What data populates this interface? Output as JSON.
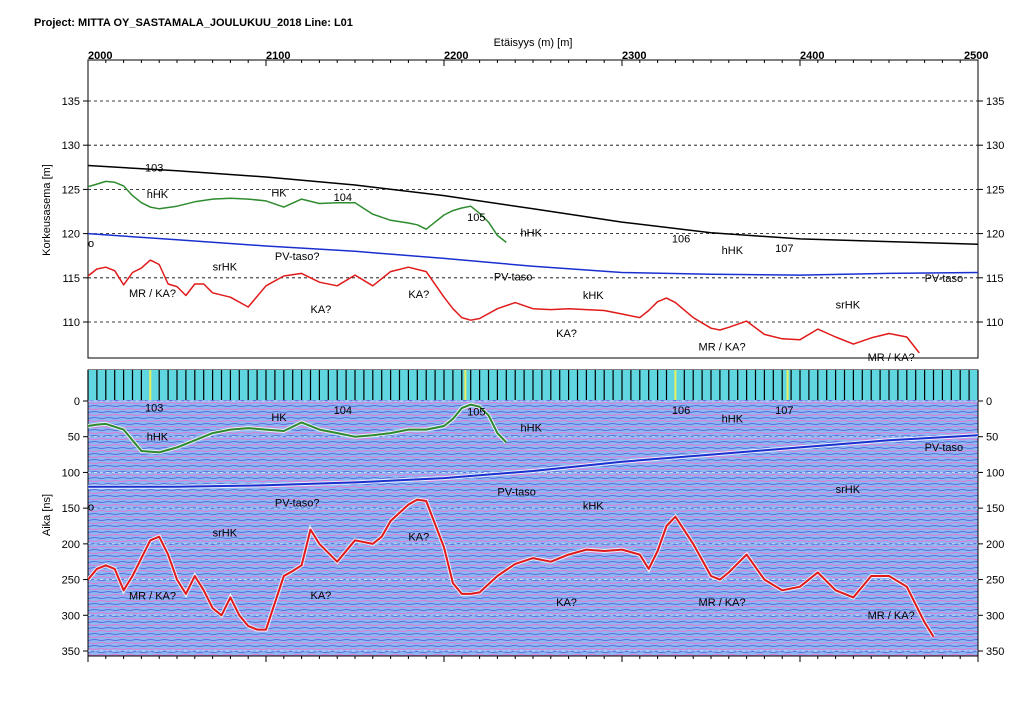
{
  "header": {
    "project_label": "Project:",
    "project_name": "MITTA OY_SASTAMALA_JOULUKUU_2018",
    "line_label": "Line:",
    "line_name": "L01"
  },
  "colors": {
    "terrain": "#000000",
    "green_layer": "#2e8b2e",
    "blue_layer": "#1a2fcf",
    "red_layer": "#e01a1a",
    "radargram_bg": "#8fb8f0",
    "marker_strip": "#5fd6e0"
  },
  "chart_data": [
    {
      "type": "line",
      "name": "elevation-profile",
      "xlabel": "Etäisyys (m) [m]",
      "ylabel": "Korkeusasema [m]",
      "xlim": [
        2000,
        2500
      ],
      "ylim": [
        106,
        140
      ],
      "x_ticks": [
        "2000",
        "2100",
        "2200",
        "2300",
        "2400",
        "2500"
      ],
      "y_ticks": [
        "110",
        "115",
        "120",
        "125",
        "130",
        "135"
      ],
      "grid": "horizontal dashed",
      "series": [
        {
          "color": "#000000",
          "x": [
            2000,
            2050,
            2100,
            2150,
            2200,
            2250,
            2300,
            2350,
            2400,
            2450,
            2500
          ],
          "y": [
            127.7,
            127.1,
            126.4,
            125.5,
            124.3,
            122.8,
            121.3,
            120.1,
            119.4,
            119.1,
            118.8
          ]
        },
        {
          "color": "#2e8b2e",
          "x": [
            2000,
            2005,
            2010,
            2015,
            2020,
            2025,
            2030,
            2035,
            2040,
            2050,
            2060,
            2070,
            2080,
            2090,
            2100,
            2110,
            2120,
            2130,
            2140,
            2150,
            2160,
            2170,
            2180,
            2185,
            2190,
            2195,
            2200,
            2205,
            2210,
            2215,
            2220,
            2225,
            2230,
            2235
          ],
          "y": [
            125.3,
            125.6,
            125.9,
            125.8,
            125.4,
            124.3,
            123.5,
            123.0,
            122.8,
            123.1,
            123.6,
            123.9,
            124.0,
            123.9,
            123.7,
            123.0,
            123.9,
            123.4,
            123.5,
            123.5,
            122.2,
            121.5,
            121.2,
            121.0,
            120.5,
            121.3,
            122.1,
            122.6,
            122.9,
            123.1,
            122.3,
            121.3,
            119.8,
            119.0
          ]
        },
        {
          "color": "#1a2fcf",
          "x": [
            2000,
            2050,
            2100,
            2150,
            2200,
            2250,
            2300,
            2350,
            2400,
            2450,
            2500
          ],
          "y": [
            120.0,
            119.3,
            118.6,
            118.0,
            117.2,
            116.3,
            115.6,
            115.4,
            115.3,
            115.5,
            115.6
          ]
        },
        {
          "color": "#e01a1a",
          "x": [
            2000,
            2005,
            2010,
            2015,
            2020,
            2025,
            2030,
            2035,
            2040,
            2045,
            2050,
            2055,
            2060,
            2065,
            2070,
            2080,
            2090,
            2100,
            2110,
            2120,
            2130,
            2140,
            2150,
            2160,
            2170,
            2180,
            2190,
            2200,
            2205,
            2210,
            2215,
            2220,
            2230,
            2240,
            2250,
            2260,
            2270,
            2280,
            2290,
            2300,
            2310,
            2315,
            2320,
            2325,
            2330,
            2340,
            2350,
            2355,
            2360,
            2370,
            2380,
            2390,
            2400,
            2410,
            2420,
            2430,
            2440,
            2450,
            2460,
            2467
          ],
          "y": [
            115.2,
            116.0,
            116.2,
            115.8,
            114.2,
            115.6,
            116.1,
            117.0,
            116.5,
            114.3,
            114.0,
            113.0,
            114.3,
            114.3,
            113.3,
            112.8,
            111.7,
            114.1,
            115.2,
            115.5,
            114.5,
            114.1,
            115.3,
            114.1,
            115.7,
            116.2,
            115.7,
            112.8,
            111.5,
            110.5,
            110.2,
            110.4,
            111.5,
            112.2,
            111.5,
            111.4,
            111.5,
            111.4,
            111.3,
            110.9,
            110.5,
            111.3,
            112.3,
            112.7,
            112.2,
            110.5,
            109.3,
            109.1,
            109.4,
            110.1,
            108.6,
            108.1,
            108.0,
            109.2,
            108.3,
            107.5,
            108.2,
            108.7,
            108.3,
            106.5
          ]
        }
      ],
      "annotations": [
        "103",
        "hHK",
        "HK",
        "104",
        "105",
        "hHK",
        "106",
        "hHK",
        "107",
        "o",
        "srHK",
        "PV-taso?",
        "MR / KA?",
        "KA?",
        "KA?",
        "PV-taso",
        "kHK",
        "KA?",
        "srHK",
        "PV-taso",
        "MR / KA?",
        "MR / KA?"
      ]
    },
    {
      "type": "line",
      "name": "radargram",
      "ylabel": "Aika [ns]",
      "xlim": [
        2000,
        2500
      ],
      "ylim": [
        0,
        350
      ],
      "y_ticks": [
        "0",
        "50",
        "100",
        "150",
        "200",
        "250",
        "300",
        "350"
      ],
      "grid": "horizontal dashed",
      "series": [
        {
          "color": "#2e8b2e",
          "x": [
            2000,
            2005,
            2010,
            2020,
            2025,
            2030,
            2040,
            2050,
            2060,
            2070,
            2080,
            2090,
            2100,
            2110,
            2120,
            2130,
            2140,
            2150,
            2160,
            2170,
            2180,
            2190,
            2200,
            2205,
            2210,
            2215,
            2220,
            2225,
            2230,
            2235
          ],
          "y": [
            35,
            33,
            32,
            40,
            55,
            70,
            72,
            65,
            55,
            45,
            40,
            38,
            40,
            42,
            30,
            40,
            45,
            50,
            48,
            45,
            40,
            40,
            35,
            25,
            10,
            5,
            8,
            20,
            45,
            58
          ]
        },
        {
          "color": "#1a2fcf",
          "x": [
            2000,
            2050,
            2100,
            2150,
            2200,
            2250,
            2300,
            2350,
            2400,
            2450,
            2500
          ],
          "y": [
            120,
            120,
            118,
            114,
            108,
            98,
            85,
            75,
            65,
            55,
            48
          ]
        },
        {
          "color": "#e01a1a",
          "x": [
            2000,
            2005,
            2010,
            2015,
            2020,
            2025,
            2035,
            2040,
            2045,
            2050,
            2055,
            2060,
            2065,
            2070,
            2075,
            2080,
            2085,
            2090,
            2095,
            2100,
            2110,
            2115,
            2120,
            2125,
            2130,
            2140,
            2150,
            2160,
            2165,
            2170,
            2180,
            2185,
            2190,
            2200,
            2205,
            2210,
            2215,
            2220,
            2230,
            2240,
            2250,
            2260,
            2270,
            2280,
            2290,
            2300,
            2310,
            2315,
            2320,
            2325,
            2330,
            2340,
            2350,
            2355,
            2360,
            2370,
            2380,
            2390,
            2400,
            2410,
            2420,
            2430,
            2440,
            2450,
            2460,
            2470,
            2475
          ],
          "y": [
            250,
            235,
            230,
            235,
            265,
            245,
            195,
            190,
            215,
            250,
            270,
            245,
            265,
            290,
            300,
            275,
            300,
            315,
            320,
            320,
            245,
            238,
            230,
            180,
            200,
            225,
            195,
            200,
            190,
            168,
            145,
            138,
            140,
            205,
            255,
            270,
            270,
            268,
            245,
            228,
            220,
            225,
            215,
            208,
            210,
            208,
            215,
            235,
            210,
            175,
            162,
            200,
            245,
            250,
            240,
            215,
            250,
            265,
            260,
            240,
            265,
            275,
            245,
            245,
            260,
            310,
            330
          ]
        }
      ],
      "annotations": [
        "103",
        "hHK",
        "HK",
        "104",
        "105",
        "hHK",
        "106",
        "hHK",
        "107",
        "o",
        "srHK",
        "PV-taso?",
        "MR / KA?",
        "KA?",
        "KA?",
        "PV-taso",
        "kHK",
        "KA?",
        "srHK",
        "PV-taso",
        "MR / KA?",
        "MR / KA?"
      ]
    }
  ],
  "labels": {
    "top_ann": [
      {
        "t": "103",
        "x": 2032,
        "y": 127.0
      },
      {
        "t": "hHK",
        "x": 2033,
        "y": 124.0
      },
      {
        "t": "HK",
        "x": 2103,
        "y": 124.2
      },
      {
        "t": "104",
        "x": 2138,
        "y": 123.7
      },
      {
        "t": "105",
        "x": 2213,
        "y": 121.4
      },
      {
        "t": "hHK",
        "x": 2243,
        "y": 119.7
      },
      {
        "t": "106",
        "x": 2328,
        "y": 119.0
      },
      {
        "t": "hHK",
        "x": 2356,
        "y": 117.7
      },
      {
        "t": "107",
        "x": 2386,
        "y": 117.9
      },
      {
        "t": "o",
        "x": 2000,
        "y": 118.5
      },
      {
        "t": "srHK",
        "x": 2070,
        "y": 115.8
      },
      {
        "t": "PV-taso?",
        "x": 2105,
        "y": 117.0
      },
      {
        "t": "MR / KA?",
        "x": 2023,
        "y": 112.8
      },
      {
        "t": "KA?",
        "x": 2125,
        "y": 111.0
      },
      {
        "t": "KA?",
        "x": 2180,
        "y": 112.7
      },
      {
        "t": "PV-taso",
        "x": 2228,
        "y": 114.7
      },
      {
        "t": "kHK",
        "x": 2278,
        "y": 112.6
      },
      {
        "t": "KA?",
        "x": 2263,
        "y": 108.3
      },
      {
        "t": "srHK",
        "x": 2420,
        "y": 111.5
      },
      {
        "t": "PV-taso",
        "x": 2470,
        "y": 114.5
      },
      {
        "t": "MR / KA?",
        "x": 2343,
        "y": 106.8
      },
      {
        "t": "MR / KA?",
        "x": 2438,
        "y": 105.6
      }
    ],
    "bottom_ann": [
      {
        "t": "103",
        "x": 2032,
        "y": 15
      },
      {
        "t": "hHK",
        "x": 2033,
        "y": 55
      },
      {
        "t": "HK",
        "x": 2103,
        "y": 28
      },
      {
        "t": "104",
        "x": 2138,
        "y": 18
      },
      {
        "t": "105",
        "x": 2213,
        "y": 20
      },
      {
        "t": "hHK",
        "x": 2243,
        "y": 43
      },
      {
        "t": "106",
        "x": 2328,
        "y": 18
      },
      {
        "t": "hHK",
        "x": 2356,
        "y": 30
      },
      {
        "t": "107",
        "x": 2386,
        "y": 18
      },
      {
        "t": "o",
        "x": 2000,
        "y": 153
      },
      {
        "t": "srHK",
        "x": 2070,
        "y": 190
      },
      {
        "t": "PV-taso?",
        "x": 2105,
        "y": 148
      },
      {
        "t": "MR / KA?",
        "x": 2023,
        "y": 278
      },
      {
        "t": "KA?",
        "x": 2125,
        "y": 277
      },
      {
        "t": "KA?",
        "x": 2180,
        "y": 195
      },
      {
        "t": "PV-taso",
        "x": 2230,
        "y": 132
      },
      {
        "t": "kHK",
        "x": 2278,
        "y": 152
      },
      {
        "t": "KA?",
        "x": 2263,
        "y": 287
      },
      {
        "t": "srHK",
        "x": 2420,
        "y": 129
      },
      {
        "t": "PV-taso",
        "x": 2470,
        "y": 70
      },
      {
        "t": "MR / KA?",
        "x": 2343,
        "y": 287
      },
      {
        "t": "MR / KA?",
        "x": 2438,
        "y": 305
      }
    ]
  }
}
